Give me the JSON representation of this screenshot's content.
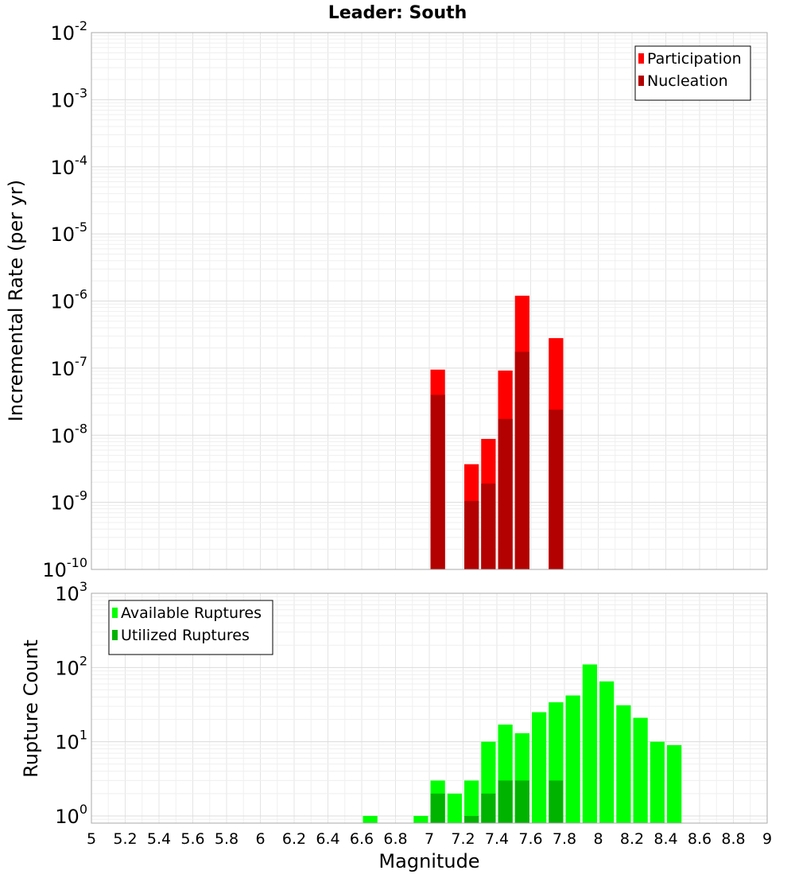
{
  "chart_data": {
    "title": "Leader: South",
    "xlabel": "Magnitude",
    "xlim": [
      5,
      9
    ],
    "x_tick_step": 0.2,
    "x_ticks": [
      "5",
      "5.2",
      "5.4",
      "5.6",
      "5.8",
      "6",
      "6.2",
      "6.4",
      "6.6",
      "6.8",
      "7",
      "7.2",
      "7.4",
      "7.6",
      "7.8",
      "8",
      "8.2",
      "8.4",
      "8.6",
      "8.8",
      "9"
    ],
    "bin_width": 0.1,
    "grid": true,
    "panels": [
      {
        "type": "bar",
        "y_scale": "log",
        "ylabel": "Incremental Rate (per yr)",
        "ylim": [
          1e-10,
          0.01
        ],
        "y_ticks": [
          {
            "base": "10",
            "exp": "-2",
            "value": 0.01
          },
          {
            "base": "10",
            "exp": "-3",
            "value": 0.001
          },
          {
            "base": "10",
            "exp": "-4",
            "value": 0.0001
          },
          {
            "base": "10",
            "exp": "-5",
            "value": 1e-05
          },
          {
            "base": "10",
            "exp": "-6",
            "value": 1e-06
          },
          {
            "base": "10",
            "exp": "-7",
            "value": 1e-07
          },
          {
            "base": "10",
            "exp": "-8",
            "value": 1e-08
          },
          {
            "base": "10",
            "exp": "-9",
            "value": 1e-09
          },
          {
            "base": "10",
            "exp": "-10",
            "value": 1e-10
          }
        ],
        "legend_position": "top-right",
        "series": [
          {
            "name": "Participation",
            "color": "#ff0000",
            "x": [
              7.05,
              7.25,
              7.35,
              7.45,
              7.55,
              7.75
            ],
            "values": [
              9.5e-08,
              3.7e-09,
              8.8e-09,
              9.2e-08,
              1.2e-06,
              2.8e-07
            ]
          },
          {
            "name": "Nucleation",
            "color": "#b30000",
            "x": [
              7.05,
              7.25,
              7.35,
              7.45,
              7.55,
              7.75
            ],
            "values": [
              4e-08,
              1.05e-09,
              1.9e-09,
              1.75e-08,
              1.75e-07,
              2.4e-08
            ]
          }
        ]
      },
      {
        "type": "bar",
        "y_scale": "log",
        "ylabel": "Rupture Count",
        "ylim": [
          0.8,
          1000
        ],
        "y_ticks": [
          {
            "base": "10",
            "exp": "3",
            "value": 1000
          },
          {
            "base": "10",
            "exp": "2",
            "value": 100
          },
          {
            "base": "10",
            "exp": "1",
            "value": 10
          },
          {
            "base": "10",
            "exp": "0",
            "value": 1
          }
        ],
        "legend_position": "top-left",
        "series": [
          {
            "name": "Available Ruptures",
            "color": "#00ff00",
            "x": [
              6.65,
              6.95,
              7.05,
              7.15,
              7.25,
              7.35,
              7.45,
              7.55,
              7.65,
              7.75,
              7.85,
              7.95,
              8.05,
              8.15,
              8.25,
              8.35,
              8.45
            ],
            "values": [
              1,
              1,
              3,
              2,
              3,
              10,
              17,
              13,
              25,
              34,
              42,
              110,
              65,
              31,
              21,
              10,
              9
            ]
          },
          {
            "name": "Utilized Ruptures",
            "color": "#00b300",
            "x": [
              7.05,
              7.25,
              7.35,
              7.45,
              7.55,
              7.75
            ],
            "values": [
              2,
              1,
              2,
              3,
              3,
              3
            ]
          }
        ]
      }
    ]
  }
}
